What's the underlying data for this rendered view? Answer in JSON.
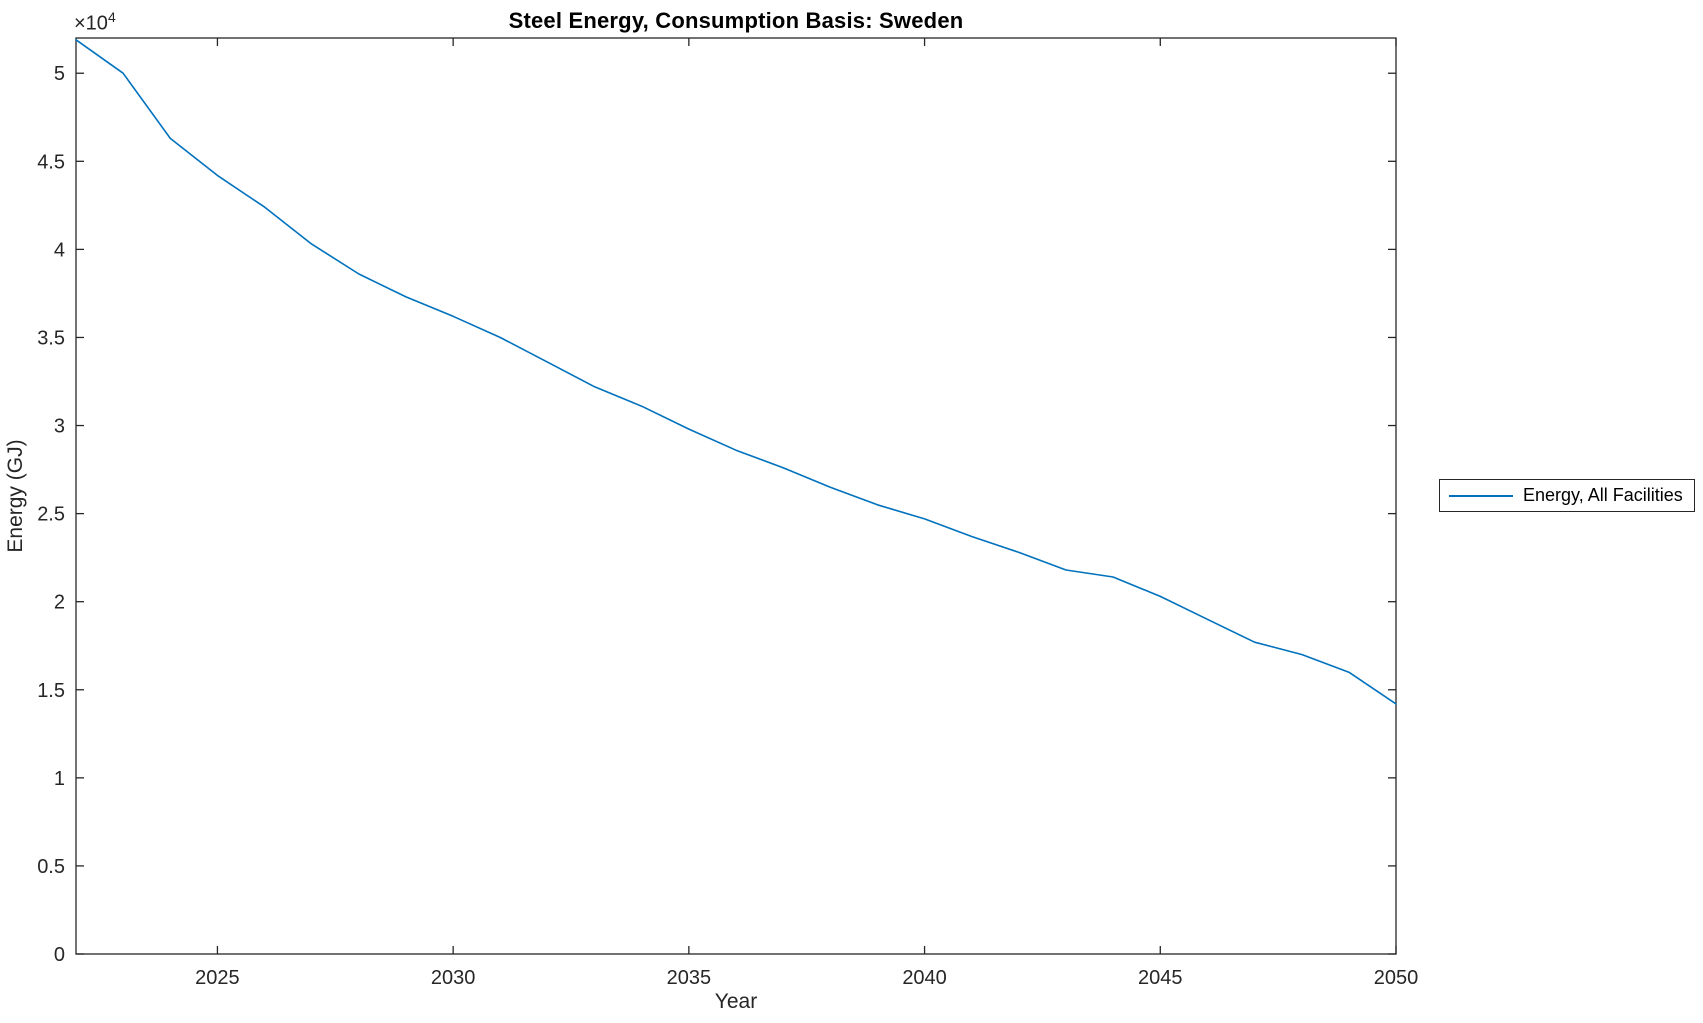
{
  "figure": {
    "title": "Steel Energy, Consumption Basis: Sweden",
    "xlabel": "Year",
    "ylabel": "Energy (GJ)",
    "y_multiplier_base": "×10",
    "y_multiplier_exponent": "4",
    "legend": {
      "items": [
        {
          "label": "Energy, All Facilities",
          "color": "#0072BD"
        }
      ]
    }
  },
  "chart_data": {
    "type": "line",
    "title": "Steel Energy, Consumption Basis: Sweden",
    "xlabel": "Year",
    "ylabel": "Energy (GJ)",
    "grid": false,
    "legend_position": "outside-right",
    "xlim": [
      2022,
      2050
    ],
    "ylim": [
      0,
      52000
    ],
    "xticks": [
      2025,
      2030,
      2035,
      2040,
      2045,
      2050
    ],
    "xtick_labels": [
      "2025",
      "2030",
      "2035",
      "2040",
      "2045",
      "2050"
    ],
    "yticks": [
      0,
      5000,
      10000,
      15000,
      20000,
      25000,
      30000,
      35000,
      40000,
      45000,
      50000
    ],
    "ytick_labels": [
      "0",
      "0.5",
      "1",
      "1.5",
      "2",
      "2.5",
      "3",
      "3.5",
      "4",
      "4.5",
      "5"
    ],
    "y_axis_multiplier_text": "×10^4",
    "x": [
      2022,
      2023,
      2024,
      2025,
      2026,
      2027,
      2028,
      2029,
      2030,
      2031,
      2032,
      2033,
      2034,
      2035,
      2036,
      2037,
      2038,
      2039,
      2040,
      2041,
      2042,
      2043,
      2044,
      2045,
      2046,
      2047,
      2048,
      2049,
      2050
    ],
    "series": [
      {
        "name": "Energy, All Facilities",
        "color": "#0072BD",
        "values": [
          51900,
          50000,
          46300,
          44200,
          42400,
          40300,
          38600,
          37300,
          36200,
          35000,
          33600,
          32200,
          31100,
          29800,
          28600,
          27600,
          26500,
          25500,
          24700,
          23700,
          22800,
          21800,
          21400,
          20300,
          19000,
          17700,
          17000,
          16000,
          14200
        ]
      }
    ]
  }
}
